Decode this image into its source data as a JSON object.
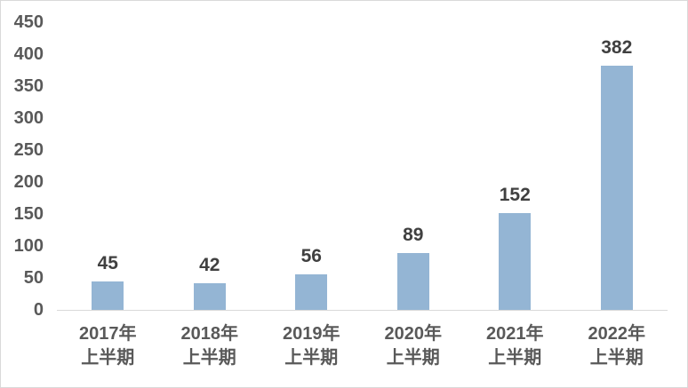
{
  "chart_data": {
    "type": "bar",
    "title": "",
    "xlabel": "",
    "ylabel": "",
    "categories": [
      "2017年",
      "2018年",
      "2019年",
      "2020年",
      "2021年",
      "2022年"
    ],
    "category_sublabel": "上半期",
    "values": [
      45,
      42,
      56,
      89,
      152,
      382
    ],
    "yticks": [
      0,
      50,
      100,
      150,
      200,
      250,
      300,
      350,
      400,
      450
    ],
    "ylim": [
      0,
      450
    ],
    "grid": false,
    "legend": "none",
    "colors": {
      "bar": "#94B5D4",
      "data_label": "#404040",
      "tick_label": "#595959",
      "axis_line": "#D9D9D9",
      "border": "#D9D9D9",
      "background": "#FFFFFF"
    }
  }
}
